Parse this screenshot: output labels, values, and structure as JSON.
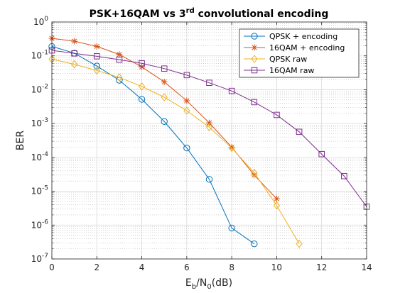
{
  "chart_data": {
    "type": "line",
    "title": "PSK+16QAM vs 3rd convolutional encoding",
    "title_parts": {
      "main": "PSK+16QAM vs 3",
      "sup": "rd",
      "rest": " convolutional encoding"
    },
    "xlabel": "Eb/N0(dB)",
    "xlabel_parts": {
      "a": "E",
      "a_sub": "b",
      "b": "/N",
      "b_sub": "0",
      "c": "(dB)"
    },
    "ylabel": "BER",
    "xlim": [
      0,
      14
    ],
    "ylim": [
      1e-07,
      1
    ],
    "yscale": "log",
    "grid": true,
    "minor_grid": true,
    "legend_position": "top-right",
    "x_ticks": [
      "0",
      "2",
      "4",
      "6",
      "8",
      "10",
      "12",
      "14"
    ],
    "y_ticks": [
      {
        "base": "10",
        "exp": "0"
      },
      {
        "base": "10",
        "exp": "-1"
      },
      {
        "base": "10",
        "exp": "-2"
      },
      {
        "base": "10",
        "exp": "-3"
      },
      {
        "base": "10",
        "exp": "-4"
      },
      {
        "base": "10",
        "exp": "-5"
      },
      {
        "base": "10",
        "exp": "-6"
      },
      {
        "base": "10",
        "exp": "-7"
      }
    ],
    "series": [
      {
        "name": "QPSK + encoding",
        "color": "#0072BD",
        "marker": "circle",
        "x": [
          0,
          1,
          2,
          3,
          4,
          5,
          6,
          7,
          8,
          9
        ],
        "y": [
          0.19,
          0.12,
          0.05,
          0.019,
          0.0052,
          0.00115,
          0.00019,
          2.25e-05,
          8.2e-07,
          2.8e-07
        ]
      },
      {
        "name": "16QAM + encoding",
        "color": "#D95319",
        "marker": "asterisk",
        "x": [
          0,
          1,
          2,
          3,
          4,
          5,
          6,
          7,
          8,
          9,
          10
        ],
        "y": [
          0.33,
          0.27,
          0.19,
          0.11,
          0.047,
          0.017,
          0.0047,
          0.00105,
          0.0002,
          3e-05,
          6e-06
        ]
      },
      {
        "name": "QPSK raw",
        "color": "#EDB120",
        "marker": "diamond",
        "x": [
          0,
          1,
          2,
          3,
          4,
          5,
          6,
          7,
          8,
          9,
          10,
          11
        ],
        "y": [
          0.08,
          0.056,
          0.037,
          0.023,
          0.0125,
          0.006,
          0.0024,
          0.00078,
          0.00019,
          3.5e-05,
          3.8e-06,
          2.8e-07
        ]
      },
      {
        "name": "16QAM raw",
        "color": "#7E2F8E",
        "marker": "square",
        "x": [
          0,
          1,
          2,
          3,
          4,
          5,
          6,
          7,
          8,
          9,
          10,
          11,
          12,
          13,
          14
        ],
        "y": [
          0.145,
          0.118,
          0.097,
          0.077,
          0.06,
          0.042,
          0.027,
          0.016,
          0.0092,
          0.0043,
          0.0018,
          0.00057,
          0.000125,
          2.8e-05,
          3.5e-06
        ]
      }
    ]
  }
}
